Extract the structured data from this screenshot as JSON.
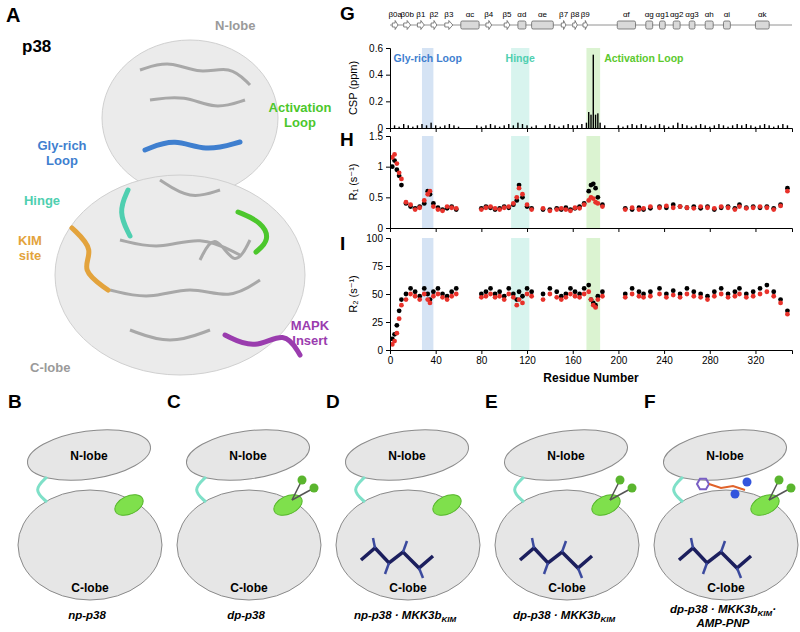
{
  "structure": {
    "letter": "A",
    "title": "p38",
    "labels": [
      {
        "text": "N-lobe"
      },
      {
        "text": "Gly-rich Loop",
        "color": "#3f7fcf"
      },
      {
        "text": "Hinge",
        "color": "#4fcfb0"
      },
      {
        "text": "Activation Loop",
        "color": "#4cc72c"
      },
      {
        "text": "KIM site",
        "color": "#e3a33c"
      },
      {
        "text": "C-lobe"
      },
      {
        "text": "MAPK Insert",
        "color": "#9a3cae"
      }
    ]
  },
  "states": {
    "lobes": [
      "N-lobe",
      "C-lobe"
    ],
    "panels": [
      {
        "letter": "B",
        "caption": "np-p38",
        "phospho": false,
        "kim_peptide": false,
        "nucleotide": false
      },
      {
        "letter": "C",
        "caption": "dp-p38",
        "phospho": true,
        "kim_peptide": false,
        "nucleotide": false
      },
      {
        "letter": "D",
        "caption": "np-p38 · MKK3b",
        "subscript": "KIM",
        "phospho": false,
        "kim_peptide": true,
        "nucleotide": false
      },
      {
        "letter": "E",
        "caption": "dp-p38 · MKK3b",
        "subscript": "KIM",
        "phospho": true,
        "kim_peptide": true,
        "nucleotide": false
      },
      {
        "letter": "F",
        "caption": "dp-p38 · MKK3b",
        "subscript": "KIM",
        "tail": "·",
        "second_line": "AMP-PNP",
        "phospho": true,
        "kim_peptide": true,
        "nucleotide": true
      }
    ]
  },
  "chart_data": [
    {
      "panel": "G",
      "type": "bar",
      "ylabel": "CSP (ppm)",
      "color": "#000000",
      "tick_labels": "y",
      "x": [
        4,
        8,
        12,
        16,
        20,
        24,
        28,
        32,
        36,
        40,
        44,
        48,
        52,
        56,
        60,
        76,
        80,
        84,
        88,
        92,
        96,
        100,
        104,
        108,
        112,
        116,
        120,
        124,
        128,
        136,
        140,
        144,
        148,
        152,
        156,
        160,
        164,
        168,
        172,
        174,
        176,
        178,
        180,
        182,
        184,
        188,
        200,
        204,
        208,
        212,
        216,
        220,
        224,
        228,
        232,
        236,
        240,
        244,
        248,
        252,
        256,
        260,
        264,
        268,
        272,
        276,
        280,
        284,
        288,
        292,
        296,
        300,
        304,
        308,
        312,
        316,
        320,
        324,
        328,
        332,
        336,
        340,
        344,
        348
      ],
      "values": [
        0.02,
        0.01,
        0.03,
        0.02,
        0.01,
        0.02,
        0.03,
        0.02,
        0.04,
        0.02,
        0.01,
        0.02,
        0.03,
        0.02,
        0.01,
        0.02,
        0.01,
        0.02,
        0.03,
        0.02,
        0.01,
        0.02,
        0.03,
        0.02,
        0.04,
        0.03,
        0.02,
        0.01,
        0.02,
        0.02,
        0.03,
        0.02,
        0.01,
        0.02,
        0.03,
        0.02,
        0.02,
        0.03,
        0.04,
        0.12,
        0.1,
        0.55,
        0.1,
        0.11,
        0.04,
        0.02,
        0.02,
        0.01,
        0.02,
        0.03,
        0.02,
        0.03,
        0.02,
        0.01,
        0.02,
        0.03,
        0.02,
        0.01,
        0.02,
        0.04,
        0.03,
        0.02,
        0.01,
        0.02,
        0.03,
        0.02,
        0.01,
        0.02,
        0.03,
        0.02,
        0.01,
        0.02,
        0.03,
        0.02,
        0.03,
        0.02,
        0.01,
        0.02,
        0.03,
        0.02,
        0.01,
        0.02,
        0.03,
        0.02
      ],
      "xlim": [
        0,
        352
      ],
      "xticks": [
        0,
        40,
        80,
        120,
        160,
        200,
        240,
        280,
        320
      ],
      "ylim": [
        0,
        0.6
      ],
      "yticks": [
        0,
        0.2,
        0.4,
        0.6
      ],
      "regions": [
        {
          "label": "Gly-rich Loop",
          "start": 28,
          "end": 38,
          "color": "#3f7fcf"
        },
        {
          "label": "Hinge",
          "start": 106,
          "end": 122,
          "color": "#4fcfb0"
        },
        {
          "label": "Activation Loop",
          "start": 172,
          "end": 184,
          "color": "#5cc92e"
        }
      ],
      "secondary_structure": [
        {
          "label": "β0a",
          "type": "strand",
          "start": 2,
          "end": 7
        },
        {
          "label": "β0b",
          "type": "strand",
          "start": 12,
          "end": 18
        },
        {
          "label": "β1",
          "type": "strand",
          "start": 24,
          "end": 30
        },
        {
          "label": "β2",
          "type": "strand",
          "start": 36,
          "end": 41
        },
        {
          "label": "β3",
          "type": "strand",
          "start": 48,
          "end": 55
        },
        {
          "label": "αc",
          "type": "helix",
          "start": 62,
          "end": 78
        },
        {
          "label": "β4",
          "type": "strand",
          "start": 84,
          "end": 89
        },
        {
          "label": "β5",
          "type": "strand",
          "start": 100,
          "end": 105
        },
        {
          "label": "αd",
          "type": "helix",
          "start": 112,
          "end": 119
        },
        {
          "label": "αe",
          "type": "helix",
          "start": 124,
          "end": 143
        },
        {
          "label": "β7",
          "type": "strand",
          "start": 150,
          "end": 154
        },
        {
          "label": "β8",
          "type": "strand",
          "start": 160,
          "end": 164
        },
        {
          "label": "β9",
          "type": "strand",
          "start": 169,
          "end": 173
        },
        {
          "label": "αf",
          "type": "helix",
          "start": 199,
          "end": 215
        },
        {
          "label": "αg",
          "type": "helix",
          "start": 224,
          "end": 230
        },
        {
          "label": "αg1",
          "type": "helix",
          "start": 236,
          "end": 241
        },
        {
          "label": "αg2",
          "type": "helix",
          "start": 248,
          "end": 254
        },
        {
          "label": "αg3",
          "type": "helix",
          "start": 262,
          "end": 267
        },
        {
          "label": "αh",
          "type": "helix",
          "start": 276,
          "end": 283
        },
        {
          "label": "αi",
          "type": "helix",
          "start": 292,
          "end": 298
        },
        {
          "label": "αk",
          "type": "helix",
          "start": 320,
          "end": 332
        }
      ]
    },
    {
      "panel": "H",
      "type": "scatter",
      "ylabel": "R₁ (s⁻¹)",
      "tick_labels": "y",
      "x": [
        2,
        4,
        6,
        8,
        10,
        14,
        18,
        22,
        26,
        30,
        33,
        35,
        38,
        42,
        46,
        50,
        54,
        58,
        80,
        84,
        88,
        92,
        96,
        100,
        104,
        108,
        111,
        113,
        116,
        120,
        124,
        134,
        140,
        146,
        150,
        154,
        158,
        162,
        166,
        170,
        174,
        176,
        178,
        180,
        182,
        186,
        206,
        212,
        218,
        222,
        228,
        236,
        242,
        248,
        254,
        260,
        266,
        272,
        278,
        284,
        290,
        296,
        302,
        306,
        312,
        318,
        324,
        330,
        336,
        342,
        348
      ],
      "series": [
        {
          "color": "#000000",
          "marker": "circle",
          "values": [
            1.0,
            1.1,
            0.95,
            0.85,
            0.7,
            0.4,
            0.35,
            0.32,
            0.35,
            0.4,
            0.6,
            0.55,
            0.4,
            0.33,
            0.3,
            0.32,
            0.35,
            0.3,
            0.32,
            0.35,
            0.33,
            0.3,
            0.32,
            0.35,
            0.33,
            0.38,
            0.45,
            0.7,
            0.5,
            0.35,
            0.32,
            0.3,
            0.3,
            0.32,
            0.3,
            0.33,
            0.3,
            0.32,
            0.35,
            0.4,
            0.6,
            0.7,
            0.72,
            0.65,
            0.5,
            0.38,
            0.32,
            0.3,
            0.33,
            0.3,
            0.32,
            0.35,
            0.33,
            0.38,
            0.35,
            0.33,
            0.35,
            0.32,
            0.35,
            0.3,
            0.33,
            0.35,
            0.32,
            0.38,
            0.33,
            0.35,
            0.33,
            0.35,
            0.32,
            0.38,
            0.65
          ]
        },
        {
          "color": "#e8312a",
          "marker": "circle",
          "values": [
            1.15,
            1.2,
            1.05,
            0.9,
            0.8,
            0.42,
            0.38,
            0.3,
            0.33,
            0.45,
            0.55,
            0.6,
            0.35,
            0.3,
            0.28,
            0.35,
            0.33,
            0.32,
            0.3,
            0.33,
            0.35,
            0.32,
            0.3,
            0.33,
            0.35,
            0.4,
            0.5,
            0.65,
            0.55,
            0.38,
            0.3,
            0.32,
            0.28,
            0.3,
            0.32,
            0.3,
            0.28,
            0.33,
            0.32,
            0.38,
            0.45,
            0.5,
            0.48,
            0.42,
            0.4,
            0.35,
            0.3,
            0.33,
            0.3,
            0.32,
            0.35,
            0.33,
            0.36,
            0.33,
            0.35,
            0.33,
            0.32,
            0.35,
            0.33,
            0.32,
            0.35,
            0.33,
            0.3,
            0.35,
            0.32,
            0.33,
            0.35,
            0.33,
            0.3,
            0.36,
            0.6
          ]
        }
      ],
      "xlim": [
        0,
        352
      ],
      "xticks": [
        0,
        40,
        80,
        120,
        160,
        200,
        240,
        280,
        320
      ],
      "ylim": [
        0,
        1.5
      ],
      "yticks": [
        0,
        0.5,
        1,
        1.5
      ]
    },
    {
      "panel": "I",
      "type": "scatter",
      "ylabel": "R₂ (s⁻¹)",
      "xlabel": "Residue Number",
      "x": [
        2,
        4,
        6,
        8,
        10,
        14,
        18,
        22,
        26,
        30,
        33,
        35,
        38,
        42,
        46,
        50,
        54,
        58,
        80,
        84,
        88,
        92,
        96,
        100,
        104,
        108,
        111,
        113,
        116,
        120,
        124,
        134,
        140,
        146,
        150,
        154,
        158,
        162,
        166,
        170,
        174,
        176,
        178,
        180,
        182,
        186,
        206,
        212,
        218,
        222,
        228,
        236,
        242,
        248,
        254,
        260,
        266,
        272,
        278,
        284,
        290,
        296,
        302,
        306,
        312,
        318,
        324,
        330,
        336,
        342,
        348
      ],
      "series": [
        {
          "color": "#000000",
          "marker": "circle",
          "values": [
            10,
            14,
            22,
            35,
            45,
            50,
            55,
            52,
            48,
            55,
            50,
            45,
            52,
            55,
            50,
            48,
            52,
            55,
            50,
            52,
            55,
            50,
            52,
            48,
            55,
            50,
            45,
            52,
            48,
            55,
            52,
            50,
            55,
            52,
            48,
            50,
            55,
            52,
            50,
            55,
            58,
            45,
            42,
            40,
            48,
            52,
            50,
            55,
            52,
            50,
            52,
            55,
            50,
            53,
            50,
            55,
            52,
            50,
            48,
            52,
            55,
            50,
            52,
            55,
            50,
            52,
            55,
            58,
            52,
            45,
            35
          ]
        },
        {
          "color": "#e8312a",
          "marker": "circle",
          "values": [
            5,
            8,
            15,
            28,
            40,
            45,
            50,
            48,
            45,
            50,
            45,
            42,
            48,
            50,
            47,
            45,
            48,
            50,
            47,
            48,
            50,
            47,
            48,
            45,
            50,
            47,
            40,
            45,
            42,
            50,
            48,
            45,
            50,
            47,
            45,
            47,
            50,
            48,
            47,
            50,
            52,
            45,
            40,
            38,
            45,
            48,
            47,
            50,
            48,
            47,
            48,
            50,
            47,
            49,
            47,
            50,
            48,
            47,
            45,
            48,
            50,
            47,
            48,
            50,
            47,
            48,
            50,
            52,
            48,
            42,
            32
          ]
        }
      ],
      "xlim": [
        0,
        352
      ],
      "xticks": [
        0,
        40,
        80,
        120,
        160,
        200,
        240,
        280,
        320
      ],
      "ylim": [
        0,
        100
      ],
      "yticks": [
        0,
        25,
        50,
        75,
        100
      ]
    }
  ]
}
